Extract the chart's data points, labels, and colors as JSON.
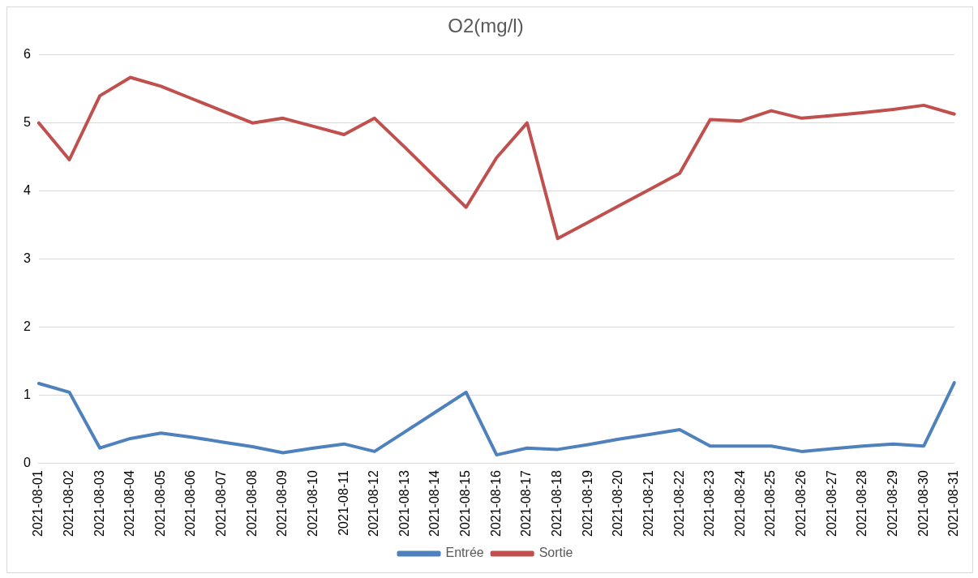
{
  "chart_data": {
    "type": "line",
    "title": "O2(mg/l)",
    "categories": [
      "2021-08-01",
      "2021-08-02",
      "2021-08-03",
      "2021-08-04",
      "2021-08-05",
      "2021-08-06",
      "2021-08-07",
      "2021-08-08",
      "2021-08-09",
      "2021-08-10",
      "2021-08-11",
      "2021-08-12",
      "2021-08-13",
      "2021-08-14",
      "2021-08-15",
      "2021-08-16",
      "2021-08-17",
      "2021-08-18",
      "2021-08-19",
      "2021-08-20",
      "2021-08-21",
      "2021-08-22",
      "2021-08-23",
      "2021-08-24",
      "2021-08-25",
      "2021-08-26",
      "2021-08-27",
      "2021-08-28",
      "2021-08-29",
      "2021-08-30",
      "2021-08-31"
    ],
    "series": [
      {
        "name": "Entrée",
        "color": "#4f81bd",
        "values": [
          1.17,
          1.04,
          0.22,
          0.36,
          0.44,
          0.38,
          0.31,
          0.24,
          0.15,
          0.22,
          0.28,
          0.17,
          0.46,
          0.75,
          1.04,
          0.12,
          0.22,
          0.2,
          0.27,
          0.35,
          0.42,
          0.49,
          0.25,
          0.25,
          0.25,
          0.17,
          0.21,
          0.25,
          0.28,
          0.25,
          1.18
        ]
      },
      {
        "name": "Sortie",
        "color": "#c0504d",
        "values": [
          5.0,
          4.46,
          5.4,
          5.67,
          5.54,
          5.36,
          5.18,
          5.0,
          5.07,
          4.95,
          4.83,
          5.07,
          4.64,
          4.2,
          3.76,
          4.49,
          5.0,
          3.3,
          3.54,
          3.78,
          4.02,
          4.26,
          5.05,
          5.03,
          5.18,
          5.07,
          5.11,
          5.15,
          5.2,
          5.26,
          5.13
        ]
      }
    ],
    "ylim": [
      0,
      6
    ],
    "yticks": [
      0,
      1,
      2,
      3,
      4,
      5,
      6
    ],
    "grid": "y",
    "legend": "bottom",
    "marker": "none",
    "line_style": "solid"
  }
}
